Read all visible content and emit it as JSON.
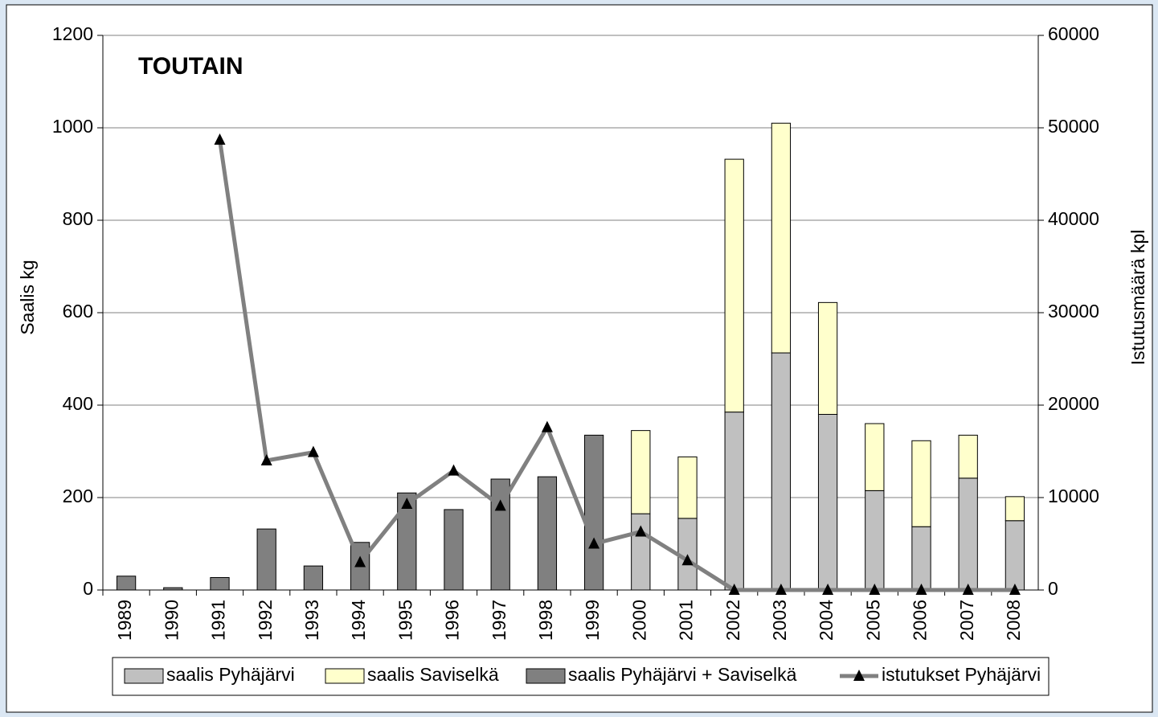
{
  "chart_data": {
    "type": "bar",
    "title": "TOUTAIN",
    "y_label": "Saalis kg",
    "y2_label": "Istutusmäärä kpl",
    "categories": [
      "1989",
      "1990",
      "1991",
      "1992",
      "1993",
      "1994",
      "1995",
      "1996",
      "1997",
      "1998",
      "1999",
      "2000",
      "2001",
      "2002",
      "2003",
      "2004",
      "2005",
      "2006",
      "2007",
      "2008"
    ],
    "series": [
      {
        "name": "saalis Pyhäjärvi",
        "type": "bar",
        "color": "#c0c0c0",
        "values": [
          null,
          null,
          null,
          null,
          null,
          null,
          null,
          null,
          null,
          null,
          null,
          165,
          155,
          385,
          513,
          380,
          215,
          137,
          242,
          150
        ]
      },
      {
        "name": "saalis Saviselkä",
        "type": "bar",
        "color": "#ffffcc",
        "values": [
          null,
          null,
          null,
          null,
          null,
          null,
          null,
          null,
          null,
          null,
          null,
          180,
          133,
          547,
          497,
          242,
          145,
          186,
          93,
          52
        ]
      },
      {
        "name": "saalis Pyhäjärvi + Saviselkä",
        "type": "bar",
        "color": "#808080",
        "values": [
          30,
          5,
          27,
          132,
          52,
          103,
          210,
          174,
          240,
          245,
          335,
          null,
          null,
          null,
          null,
          null,
          null,
          null,
          null,
          null
        ]
      },
      {
        "name": "istutukset Pyhäjärvi",
        "type": "line",
        "axis": "y2",
        "color": "#808080",
        "marker_color": "#000000",
        "values": [
          null,
          null,
          48700,
          14000,
          14900,
          3000,
          9300,
          12900,
          9100,
          17600,
          5000,
          6300,
          3200,
          0,
          0,
          0,
          0,
          0,
          0,
          0
        ]
      }
    ],
    "ylim": [
      0,
      1200
    ],
    "yticks": [
      0,
      200,
      400,
      600,
      800,
      1000,
      1200
    ],
    "y2lim": [
      0,
      60000
    ],
    "y2ticks": [
      0,
      10000,
      20000,
      30000,
      40000,
      50000,
      60000
    ],
    "grid": true,
    "stacked": true,
    "legend": "bottom"
  }
}
